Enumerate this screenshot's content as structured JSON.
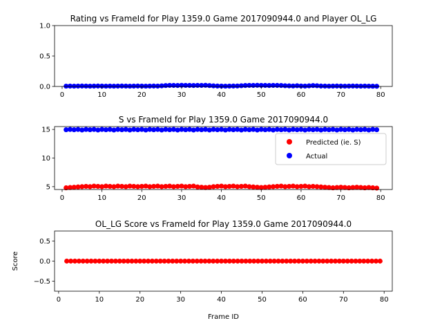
{
  "chart_data": [
    {
      "type": "scatter",
      "title": "Rating vs FrameId for Play 1359.0 Game 2017090944.0 and Player OL_LG",
      "xlabel": "",
      "ylabel": "",
      "xlim": [
        -1.9,
        82.9
      ],
      "ylim": [
        0.0,
        1.0
      ],
      "xticks": [
        0,
        10,
        20,
        30,
        40,
        50,
        60,
        70,
        80
      ],
      "yticks": [
        0.0,
        0.5,
        1.0
      ],
      "ytick_labels": [
        "0.0",
        "0.5",
        "1.0"
      ],
      "grid": false,
      "series": [
        {
          "name": "",
          "color": "#0000ff",
          "x_range": [
            1,
            79
          ],
          "values": [
            0.005,
            0.006,
            0.005,
            0.006,
            0.007,
            0.006,
            0.005,
            0.006,
            0.007,
            0.006,
            0.005,
            0.006,
            0.005,
            0.006,
            0.007,
            0.006,
            0.005,
            0.006,
            0.007,
            0.006,
            0.005,
            0.006,
            0.007,
            0.006,
            0.01,
            0.015,
            0.018,
            0.017,
            0.016,
            0.019,
            0.018,
            0.017,
            0.016,
            0.018,
            0.017,
            0.019,
            0.015,
            0.01,
            0.007,
            0.006,
            0.005,
            0.006,
            0.007,
            0.008,
            0.012,
            0.016,
            0.018,
            0.017,
            0.019,
            0.018,
            0.017,
            0.016,
            0.018,
            0.017,
            0.016,
            0.012,
            0.01,
            0.008,
            0.012,
            0.008,
            0.006,
            0.01,
            0.015,
            0.012,
            0.007,
            0.006,
            0.005,
            0.006,
            0.007,
            0.006,
            0.005,
            0.006,
            0.007,
            0.006,
            0.005,
            0.006,
            0.005,
            0.004,
            0.003
          ]
        }
      ]
    },
    {
      "type": "scatter",
      "title": "S vs FrameId for Play 1359.0 Game 2017090944.0",
      "xlabel": "",
      "ylabel": "",
      "xlim": [
        -1.9,
        82.9
      ],
      "ylim": [
        4.5,
        15.5
      ],
      "xticks": [
        0,
        10,
        20,
        30,
        40,
        50,
        60,
        70,
        80
      ],
      "yticks": [
        5,
        10,
        15
      ],
      "grid": false,
      "legend": "right",
      "series": [
        {
          "name": "Predicted (ie. S)",
          "color": "#ff0000",
          "x_range": [
            1,
            79
          ],
          "values": [
            4.8,
            4.85,
            4.9,
            4.95,
            5.0,
            5.05,
            5.0,
            5.1,
            5.05,
            5.0,
            5.1,
            5.05,
            5.0,
            5.1,
            5.05,
            5.0,
            5.1,
            5.05,
            5.0,
            5.05,
            5.1,
            5.0,
            5.05,
            5.1,
            5.0,
            5.05,
            5.1,
            5.0,
            5.05,
            5.1,
            5.0,
            5.05,
            5.1,
            4.95,
            4.9,
            4.85,
            4.9,
            5.0,
            5.05,
            5.1,
            5.0,
            5.05,
            5.1,
            5.0,
            5.05,
            5.1,
            5.0,
            4.95,
            4.9,
            4.85,
            4.9,
            4.95,
            5.0,
            5.05,
            5.1,
            5.0,
            5.05,
            5.1,
            5.0,
            5.05,
            5.1,
            5.0,
            5.05,
            5.0,
            4.95,
            4.9,
            4.85,
            4.8,
            4.85,
            4.9,
            4.85,
            4.8,
            4.85,
            4.9,
            4.85,
            4.8,
            4.85,
            4.8,
            4.75
          ]
        },
        {
          "name": "Actual",
          "color": "#0000ff",
          "x_range": [
            1,
            79
          ],
          "values": [
            14.95,
            15.0,
            14.95,
            15.0,
            14.9,
            15.0,
            14.95,
            15.0,
            14.9,
            15.0,
            14.95,
            15.0,
            14.9,
            15.0,
            14.95,
            15.0,
            14.9,
            15.0,
            14.95,
            15.0,
            14.9,
            15.0,
            14.95,
            15.0,
            14.9,
            15.0,
            14.95,
            15.0,
            14.9,
            15.0,
            14.95,
            15.0,
            14.9,
            15.0,
            14.95,
            15.0,
            14.9,
            15.0,
            14.95,
            15.0,
            14.9,
            15.0,
            14.95,
            15.0,
            14.9,
            15.0,
            14.95,
            15.0,
            14.9,
            15.0,
            14.95,
            15.0,
            14.9,
            15.0,
            14.95,
            15.0,
            14.9,
            15.0,
            14.95,
            15.0,
            14.9,
            15.0,
            14.95,
            15.0,
            14.9,
            15.0,
            14.95,
            15.0,
            14.9,
            15.0,
            14.95,
            15.0,
            14.9,
            15.0,
            14.95,
            15.0,
            14.9,
            15.0,
            14.95
          ]
        }
      ]
    },
    {
      "type": "scatter",
      "title": "OL_LG Score vs FrameId for Play 1359.0 Game 2017090944.0",
      "xlabel": "Frame ID",
      "ylabel": "Score",
      "xlim": [
        -1.0,
        82.0
      ],
      "ylim": [
        -0.75,
        0.75
      ],
      "xticks": [
        0,
        10,
        20,
        30,
        40,
        50,
        60,
        70,
        80
      ],
      "yticks": [
        -0.5,
        0.0,
        0.5
      ],
      "ytick_labels": [
        "−0.5",
        "0.0",
        "0.5"
      ],
      "grid": false,
      "series": [
        {
          "name": "",
          "color": "#ff0000",
          "x_range": [
            2,
            79
          ],
          "constant_value": 0.0
        }
      ]
    }
  ]
}
